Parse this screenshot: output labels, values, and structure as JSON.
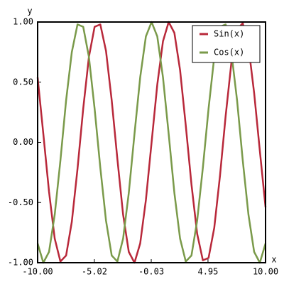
{
  "chart_data": {
    "type": "line",
    "xlabel": "x",
    "ylabel": "y",
    "x": [
      -10,
      -9.5,
      -9,
      -8.5,
      -8,
      -7.5,
      -7,
      -6.5,
      -6,
      -5.5,
      -5,
      -4.5,
      -4,
      -3.5,
      -3,
      -2.5,
      -2,
      -1.5,
      -1,
      -0.5,
      0,
      0.5,
      1,
      1.5,
      2,
      2.5,
      3,
      3.5,
      4,
      4.5,
      5,
      5.5,
      6,
      6.5,
      7,
      7.5,
      8,
      8.5,
      9,
      9.5,
      10
    ],
    "series": [
      {
        "name": "Sin(x)",
        "color": "#b8283a",
        "values": [
          0.54,
          0.07,
          -0.41,
          -0.8,
          -0.99,
          -0.94,
          -0.66,
          -0.22,
          0.28,
          0.71,
          0.96,
          0.98,
          0.76,
          0.35,
          -0.14,
          -0.6,
          -0.91,
          -1.0,
          -0.84,
          -0.48,
          0,
          0.48,
          0.84,
          1.0,
          0.91,
          0.6,
          0.14,
          -0.35,
          -0.76,
          -0.98,
          -0.96,
          -0.71,
          -0.28,
          0.22,
          0.66,
          0.94,
          0.99,
          0.8,
          0.41,
          -0.07,
          -0.54
        ]
      },
      {
        "name": "Cos(x)",
        "color": "#7a9a4a",
        "values": [
          -0.84,
          -1.0,
          -0.91,
          -0.6,
          -0.15,
          0.35,
          0.75,
          0.98,
          0.96,
          0.71,
          0.28,
          -0.21,
          -0.65,
          -0.94,
          -0.99,
          -0.8,
          -0.42,
          0.07,
          0.54,
          0.88,
          1.0,
          0.88,
          0.54,
          0.07,
          -0.42,
          -0.8,
          -0.99,
          -0.94,
          -0.65,
          -0.21,
          0.28,
          0.71,
          0.96,
          0.98,
          0.75,
          0.35,
          -0.15,
          -0.6,
          -0.91,
          -1.0,
          -0.84
        ]
      }
    ],
    "xlim": [
      -10,
      10
    ],
    "ylim": [
      -1,
      1
    ],
    "xticks": [
      {
        "value": -10,
        "label": "-10.00"
      },
      {
        "value": -5.02,
        "label": "-5.02"
      },
      {
        "value": -0.03,
        "label": "-0.03"
      },
      {
        "value": 4.95,
        "label": "4.95"
      },
      {
        "value": 10,
        "label": "10.00"
      }
    ],
    "yticks": [
      {
        "value": -1,
        "label": "-1.00"
      },
      {
        "value": -0.5,
        "label": "-0.50"
      },
      {
        "value": 0,
        "label": "0.00"
      },
      {
        "value": 0.5,
        "label": "0.50"
      },
      {
        "value": 1,
        "label": "1.00"
      }
    ],
    "legend": "top-right"
  }
}
